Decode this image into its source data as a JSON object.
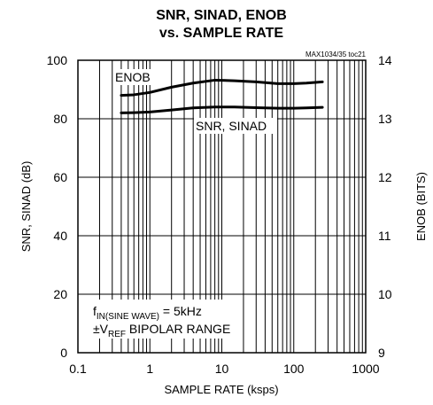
{
  "chart_data": {
    "type": "line",
    "title_line1": "SNR, SINAD, ENOB",
    "title_line2": "vs. SAMPLE RATE",
    "figure_code": "MAX1034/35 toc21",
    "xlabel": "SAMPLE RATE (ksps)",
    "ylabel": "SNR, SINAD (dB)",
    "y2label": "ENOB (BITS)",
    "x_scale": "log",
    "xlim": [
      0.1,
      1000
    ],
    "ylim": [
      0,
      100
    ],
    "y2lim": [
      9,
      14
    ],
    "x_ticks": [
      0.1,
      1,
      10,
      100,
      1000
    ],
    "x_tick_labels": [
      "0.1",
      "1",
      "10",
      "100",
      "1000"
    ],
    "y_ticks": [
      0,
      20,
      40,
      60,
      80,
      100
    ],
    "y_tick_labels": [
      "0",
      "20",
      "40",
      "60",
      "80",
      "100"
    ],
    "y2_ticks": [
      9,
      10,
      11,
      12,
      13,
      14
    ],
    "y2_tick_labels": [
      "9",
      "10",
      "11",
      "12",
      "13",
      "14"
    ],
    "grid": true,
    "series": [
      {
        "name": "ENOB",
        "axis": "right",
        "x": [
          0.4,
          0.6,
          1,
          2,
          4,
          8,
          15,
          30,
          60,
          100,
          150,
          250
        ],
        "y": [
          13.4,
          13.41,
          13.45,
          13.54,
          13.61,
          13.66,
          13.65,
          13.63,
          13.6,
          13.6,
          13.61,
          13.63
        ]
      },
      {
        "name": "SNR, SINAD",
        "axis": "left",
        "x": [
          0.4,
          0.6,
          1,
          2,
          4,
          8,
          15,
          30,
          60,
          100,
          150,
          250
        ],
        "y": [
          82,
          82.1,
          82.3,
          83,
          83.7,
          84,
          84,
          83.8,
          83.6,
          83.6,
          83.7,
          83.9
        ]
      }
    ],
    "annotations": {
      "line1_main": "f",
      "line1_sub": "IN(SINE WAVE)",
      "line1_rest": " = 5kHz",
      "line2_main": "±V",
      "line2_sub": "REF",
      "line2_rest": " BIPOLAR RANGE"
    }
  }
}
